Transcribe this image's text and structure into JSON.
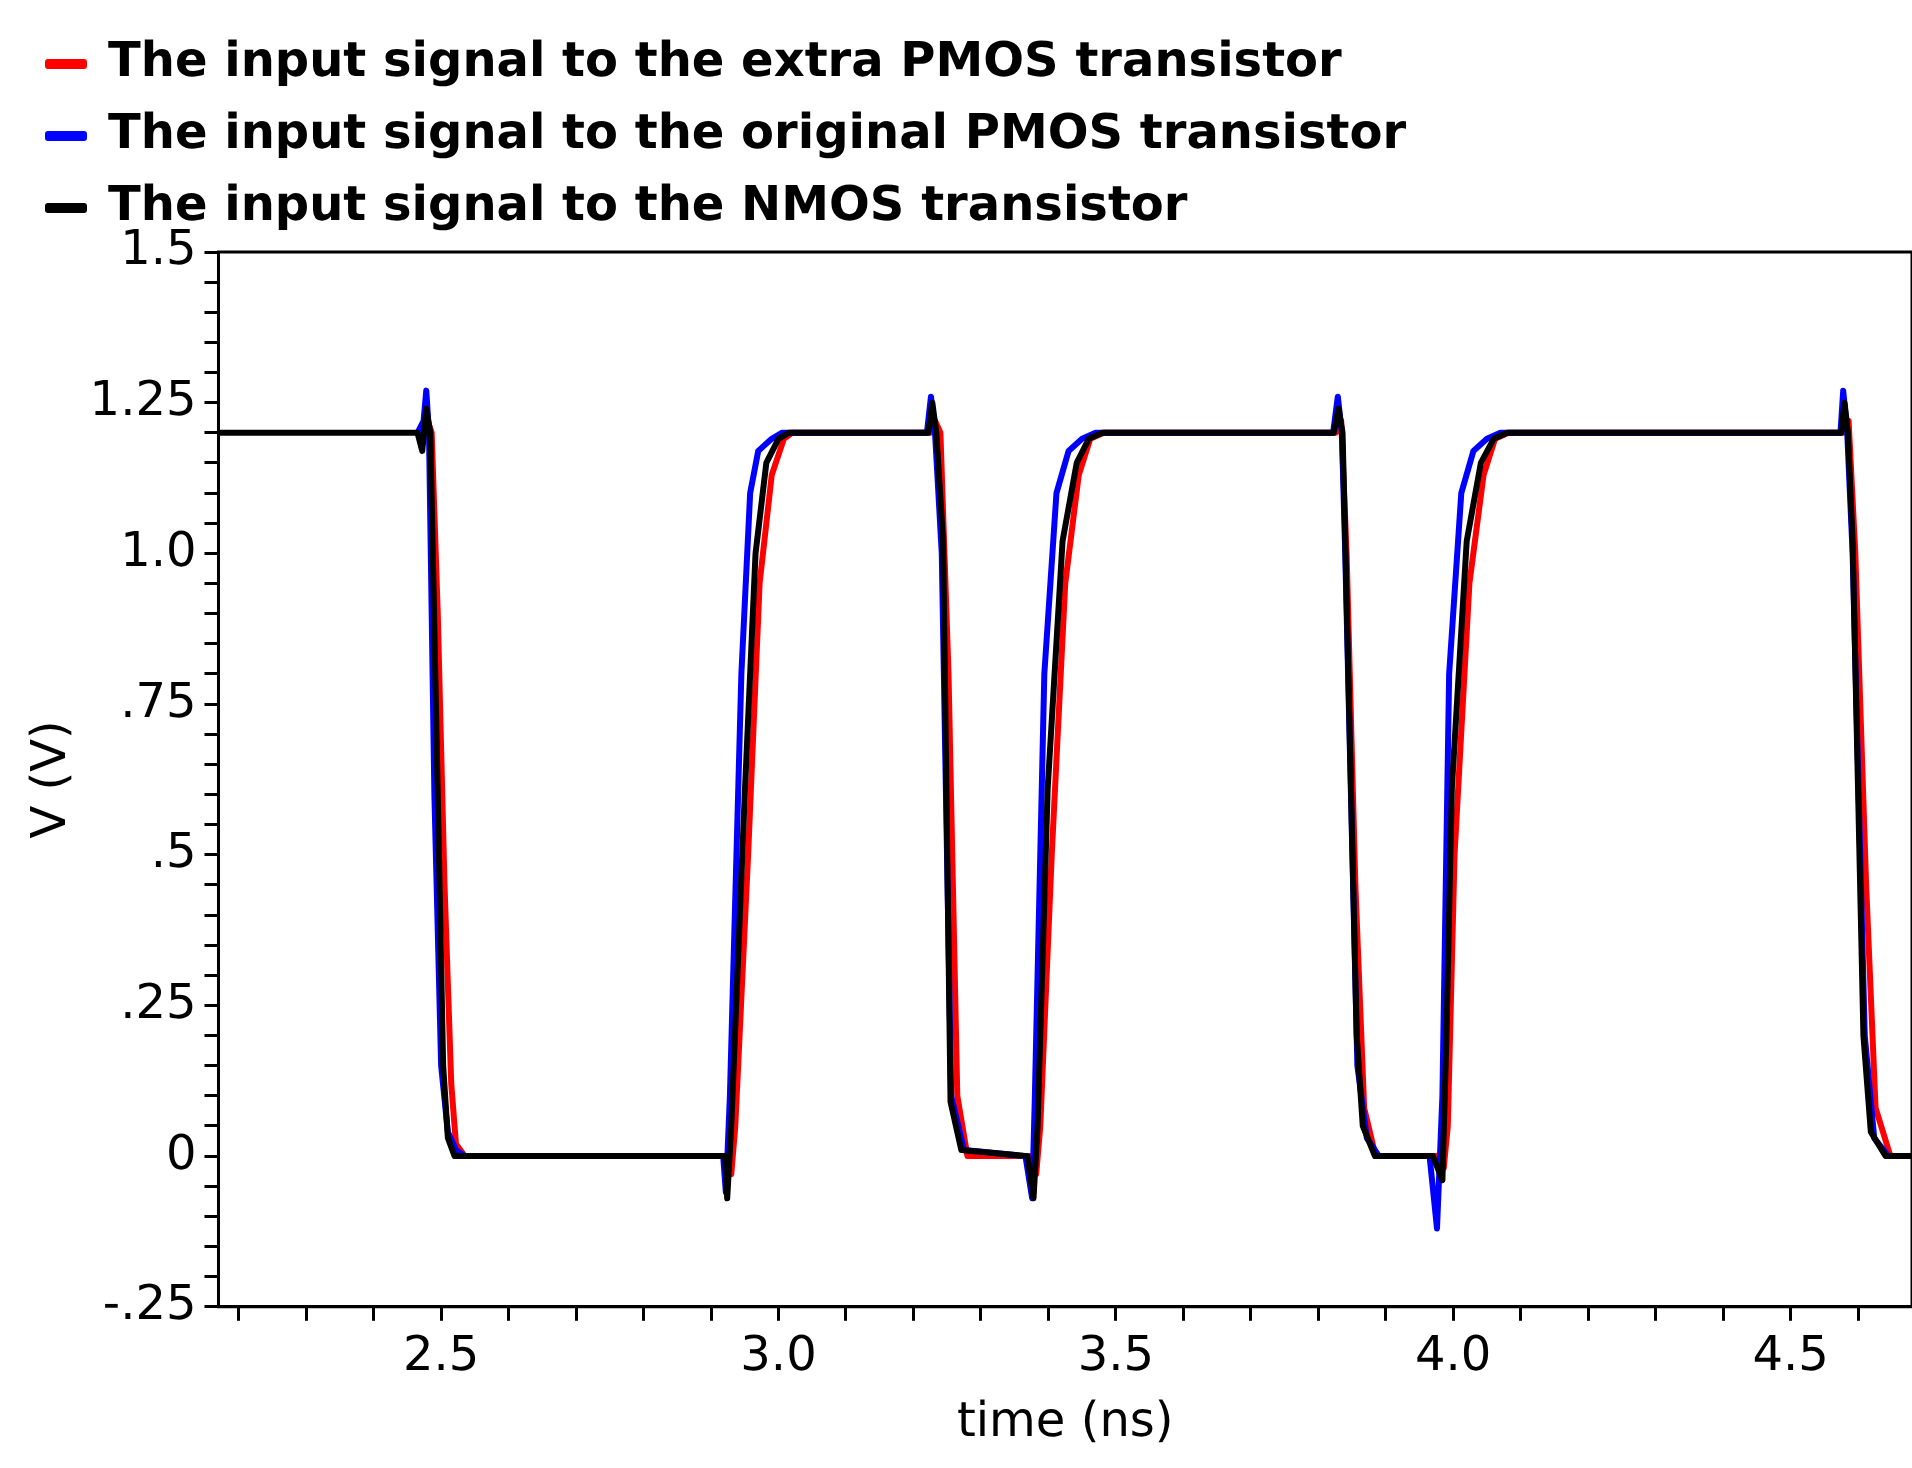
{
  "chart_data": {
    "type": "line",
    "xlabel": "time (ns)",
    "ylabel": "V (V)",
    "legend": "top left",
    "grid": false,
    "marker": "none",
    "line_style": "solid",
    "xlim": [
      2.17,
      4.68
    ],
    "ylim": [
      -0.25,
      1.5
    ],
    "xticks": [
      {
        "value": 2.2,
        "label": null
      },
      {
        "value": 2.3,
        "label": null
      },
      {
        "value": 2.4,
        "label": null
      },
      2.5,
      {
        "value": 2.6,
        "label": null
      },
      {
        "value": 2.7,
        "label": null
      },
      {
        "value": 2.8,
        "label": null
      },
      {
        "value": 2.9,
        "label": null
      },
      {
        "value": 3,
        "label": "3.0"
      },
      {
        "value": 3.1,
        "label": null
      },
      {
        "value": 3.2,
        "label": null
      },
      {
        "value": 3.3,
        "label": null
      },
      {
        "value": 3.4,
        "label": null
      },
      3.5,
      {
        "value": 3.6,
        "label": null
      },
      {
        "value": 3.7,
        "label": null
      },
      {
        "value": 3.8,
        "label": null
      },
      {
        "value": 3.9,
        "label": null
      },
      {
        "value": 4,
        "label": "4.0"
      },
      {
        "value": 4.1,
        "label": null
      },
      {
        "value": 4.2,
        "label": null
      },
      {
        "value": 4.3,
        "label": null
      },
      {
        "value": 4.4,
        "label": null
      },
      4.5,
      {
        "value": 4.6,
        "label": null
      }
    ],
    "yticks": [
      {
        "value": -0.25,
        "label": "-.25"
      },
      {
        "value": -0.2,
        "label": null
      },
      {
        "value": -0.15,
        "label": null
      },
      {
        "value": -0.1,
        "label": null
      },
      {
        "value": -0.05,
        "label": null
      },
      0,
      {
        "value": 0.05,
        "label": null
      },
      {
        "value": 0.1,
        "label": null
      },
      {
        "value": 0.15,
        "label": null
      },
      {
        "value": 0.2,
        "label": null
      },
      {
        "value": 0.25,
        "label": ".25"
      },
      {
        "value": 0.3,
        "label": null
      },
      {
        "value": 0.35,
        "label": null
      },
      {
        "value": 0.4,
        "label": null
      },
      {
        "value": 0.45,
        "label": null
      },
      {
        "value": 0.5,
        "label": ".5"
      },
      {
        "value": 0.55,
        "label": null
      },
      {
        "value": 0.6,
        "label": null
      },
      {
        "value": 0.65,
        "label": null
      },
      {
        "value": 0.7,
        "label": null
      },
      {
        "value": 0.75,
        "label": ".75"
      },
      {
        "value": 0.8,
        "label": null
      },
      {
        "value": 0.85,
        "label": null
      },
      {
        "value": 0.9,
        "label": null
      },
      {
        "value": 0.95,
        "label": null
      },
      {
        "value": 1,
        "label": "1.0"
      },
      {
        "value": 1.05,
        "label": null
      },
      {
        "value": 1.1,
        "label": null
      },
      {
        "value": 1.15,
        "label": null
      },
      {
        "value": 1.2,
        "label": null
      },
      {
        "value": 1.25,
        "label": "1.25"
      },
      {
        "value": 1.3,
        "label": null
      },
      {
        "value": 1.35,
        "label": null
      },
      {
        "value": 1.4,
        "label": null
      },
      {
        "value": 1.45,
        "label": null
      },
      1.5
    ],
    "series": [
      {
        "name": "The input signal to the extra PMOS transistor",
        "color": "#ff0000",
        "x": [
          2.48,
          2.486,
          2.495,
          2.505,
          2.515,
          2.522,
          2.535,
          2.925,
          2.93,
          2.936,
          2.955,
          2.972,
          2.99,
          3.008,
          3.02,
          3.225,
          3.232,
          3.24,
          3.252,
          3.265,
          3.28,
          3.372,
          3.382,
          3.388,
          3.405,
          3.425,
          3.445,
          3.462,
          3.482,
          3.826,
          3.834,
          3.842,
          3.855,
          3.868,
          3.885,
          3.975,
          3.986,
          3.992,
          4.002,
          4.024,
          4.045,
          4.062,
          4.082,
          4.578,
          4.586,
          4.596,
          4.612,
          4.626,
          4.648,
          4.68
        ],
        "values": [
          1.22,
          1.2,
          0.9,
          0.45,
          0.12,
          0.02,
          0,
          0,
          -0.03,
          0.05,
          0.5,
          0.95,
          1.13,
          1.19,
          1.2,
          1.2,
          1.22,
          1.2,
          0.8,
          0.1,
          0,
          0,
          -0.03,
          0.05,
          0.5,
          0.95,
          1.13,
          1.19,
          1.2,
          1.2,
          1.22,
          1.0,
          0.45,
          0.08,
          0,
          0,
          -0.02,
          0.05,
          0.5,
          0.95,
          1.13,
          1.19,
          1.2,
          1.2,
          1.22,
          1.0,
          0.45,
          0.08,
          0,
          0
        ]
      },
      {
        "name": "The input signal to the original PMOS transistor",
        "color": "#0000ff",
        "x": [
          2.465,
          2.474,
          2.478,
          2.482,
          2.49,
          2.5,
          2.51,
          2.522,
          2.535,
          2.918,
          2.922,
          2.928,
          2.945,
          2.958,
          2.97,
          2.99,
          3.005,
          3.22,
          3.226,
          3.232,
          3.242,
          3.256,
          3.275,
          3.366,
          3.376,
          3.38,
          3.394,
          3.412,
          3.43,
          3.45,
          3.47,
          3.822,
          3.829,
          3.835,
          3.84,
          3.858,
          3.872,
          3.89,
          3.965,
          3.976,
          3.984,
          3.994,
          4.012,
          4.03,
          4.05,
          4.07,
          4.574,
          4.578,
          4.584,
          4.592,
          4.61,
          4.624,
          4.645,
          4.68
        ],
        "values": [
          1.2,
          1.22,
          1.27,
          1.2,
          0.6,
          0.15,
          0.04,
          0.01,
          0,
          0,
          -0.06,
          0.1,
          0.8,
          1.1,
          1.17,
          1.19,
          1.2,
          1.2,
          1.26,
          1.2,
          1.0,
          0.1,
          0.01,
          0,
          -0.07,
          0.1,
          0.8,
          1.1,
          1.17,
          1.19,
          1.2,
          1.2,
          1.26,
          1.2,
          1.0,
          0.15,
          0.03,
          0,
          0,
          -0.12,
          0.1,
          0.8,
          1.1,
          1.17,
          1.19,
          1.2,
          1.2,
          1.27,
          1.2,
          1.0,
          0.2,
          0.03,
          0,
          0
        ]
      },
      {
        "name": "The input signal to the NMOS transistor",
        "color": "#000000",
        "x": [
          2.17,
          2.465,
          2.472,
          2.478,
          2.484,
          2.495,
          2.503,
          2.51,
          2.52,
          2.53,
          2.921,
          2.924,
          2.93,
          2.95,
          2.966,
          2.982,
          3.0,
          3.015,
          3.222,
          3.228,
          3.234,
          3.244,
          3.255,
          3.271,
          3.369,
          3.378,
          3.384,
          3.399,
          3.421,
          3.442,
          3.46,
          3.48,
          3.823,
          3.83,
          3.836,
          3.84,
          3.857,
          3.866,
          3.884,
          3.97,
          3.984,
          3.99,
          3.998,
          4.02,
          4.041,
          4.06,
          4.08,
          4.575,
          4.58,
          4.585,
          4.592,
          4.608,
          4.619,
          4.641,
          4.68
        ],
        "values": [
          1.2,
          1.2,
          1.17,
          1.24,
          1.2,
          0.6,
          0.15,
          0.03,
          0,
          0,
          0,
          -0.07,
          0.05,
          0.6,
          1.0,
          1.15,
          1.19,
          1.2,
          1.2,
          1.25,
          1.2,
          1.02,
          0.09,
          0.01,
          0,
          -0.07,
          0.05,
          0.61,
          1.02,
          1.15,
          1.19,
          1.2,
          1.2,
          1.24,
          1.2,
          1.02,
          0.2,
          0.05,
          0,
          0,
          -0.04,
          0.2,
          0.61,
          1.02,
          1.15,
          1.19,
          1.2,
          1.2,
          1.25,
          1.2,
          1.02,
          0.2,
          0.04,
          0,
          0
        ]
      }
    ]
  }
}
